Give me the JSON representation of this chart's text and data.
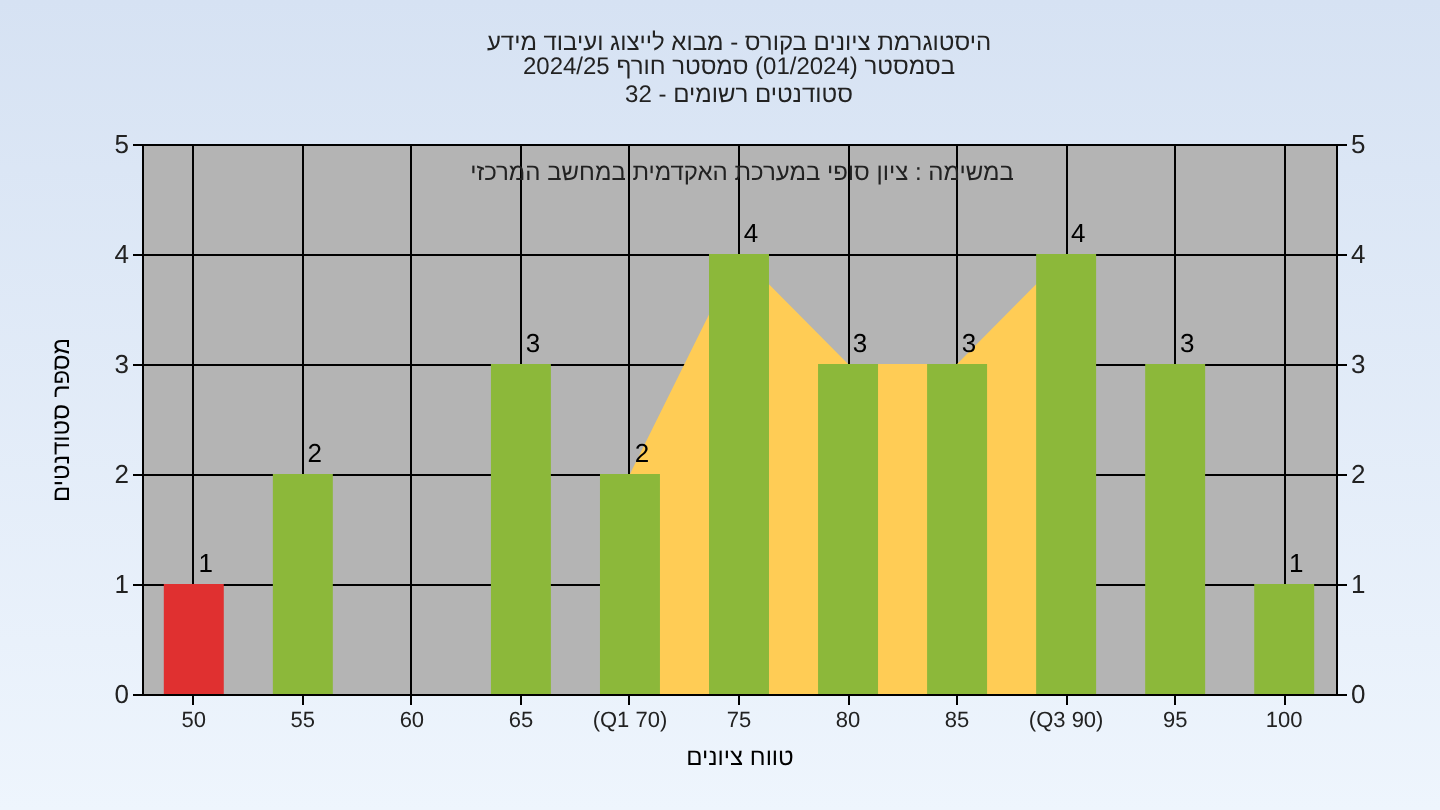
{
  "chart_data": {
    "type": "bar",
    "title": "היסטוגרמת ציונים בקורס - מבוא לייצוג ועיבוד מידע",
    "subtitle": [
      "בסמסטר  (01/2024)  סמסטר חורף 2024/25",
      "סטודנטים רשומים - 32"
    ],
    "xlabel": "טווח ציונים",
    "ylabel": "מספר סטודנטים",
    "annotations": [
      "במשימה : ציון סופי במערכת האקדמית במחשב המרכזי"
    ],
    "categories": [
      "50",
      "55",
      "60",
      "65",
      "(Q1 70)",
      "75",
      "80",
      "85",
      "(Q3 90)",
      "95",
      "100"
    ],
    "series": [
      {
        "type": "area",
        "color": "#ffcc55",
        "values": [
          null,
          null,
          null,
          null,
          2,
          4,
          3,
          3,
          4,
          null,
          null
        ]
      },
      {
        "colors": [
          "#e03030",
          "#8cb83a",
          "#8cb83a",
          "#8cb83a",
          "#8cb83a",
          "#8cb83a",
          "#8cb83a",
          "#8cb83a",
          "#8cb83a",
          "#8cb83a",
          "#8cb83a"
        ],
        "values": [
          1,
          2,
          0,
          3,
          2,
          4,
          3,
          3,
          4,
          3,
          1
        ],
        "value_labels": [
          "1",
          "2",
          null,
          "3",
          "2",
          "4",
          "3",
          "3",
          "4",
          "3",
          "1"
        ]
      }
    ],
    "ylim": [
      0,
      5
    ],
    "yticks": [
      0,
      1,
      2,
      3,
      4,
      5
    ],
    "y2lim": [
      0,
      5
    ],
    "y2ticks": [
      0,
      1,
      2,
      3,
      4,
      5
    ],
    "grid": true
  }
}
